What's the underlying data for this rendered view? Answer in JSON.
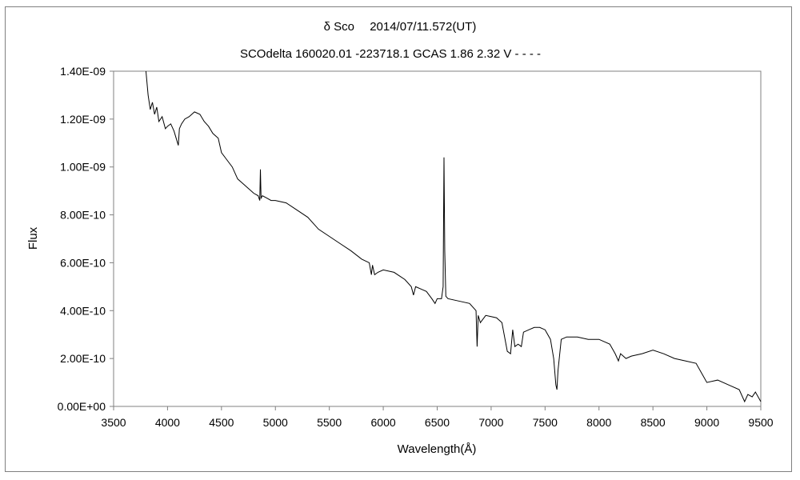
{
  "chart_data": {
    "type": "line",
    "title": "δ Sco　 2014/07/11.572(UT)",
    "subtitle": "SCOdelta 160020.01 -223718.1 GCAS 1.86 2.32 V - - - -",
    "xlabel": "Wavelength(Å)",
    "ylabel": "Flux",
    "xlim": [
      3500,
      9500
    ],
    "ylim": [
      0,
      1.4e-09
    ],
    "x_ticks": [
      "3500",
      "4000",
      "4500",
      "5000",
      "5500",
      "6000",
      "6500",
      "7000",
      "7500",
      "8000",
      "8500",
      "9000",
      "9500"
    ],
    "y_ticks": [
      "0.00E+00",
      "2.00E-10",
      "4.00E-10",
      "6.00E-10",
      "8.00E-10",
      "1.00E-09",
      "1.20E-09",
      "1.40E-09"
    ],
    "grid": false,
    "legend": "none",
    "line_color": "#000000",
    "series": [
      {
        "x": [
          3800,
          3820,
          3840,
          3860,
          3880,
          3900,
          3920,
          3950,
          3980,
          4000,
          4030,
          4060,
          4080,
          4100,
          4110,
          4130,
          4160,
          4200,
          4250,
          4300,
          4340,
          4380,
          4420,
          4470,
          4500,
          4550,
          4600,
          4650,
          4700,
          4750,
          4800,
          4840,
          4855,
          4861,
          4867,
          4880,
          4920,
          4960,
          5000,
          5100,
          5200,
          5300,
          5400,
          5500,
          5600,
          5700,
          5800,
          5870,
          5890,
          5900,
          5920,
          5950,
          6000,
          6100,
          6200,
          6260,
          6280,
          6300,
          6350,
          6400,
          6450,
          6480,
          6500,
          6540,
          6555,
          6563,
          6570,
          6580,
          6600,
          6700,
          6800,
          6860,
          6870,
          6880,
          6900,
          6950,
          7000,
          7050,
          7100,
          7150,
          7180,
          7200,
          7220,
          7250,
          7280,
          7300,
          7350,
          7400,
          7450,
          7500,
          7550,
          7580,
          7600,
          7610,
          7620,
          7650,
          7700,
          7800,
          7900,
          8000,
          8100,
          8150,
          8180,
          8200,
          8250,
          8300,
          8400,
          8500,
          8600,
          8700,
          8800,
          8900,
          8950,
          9000,
          9100,
          9200,
          9300,
          9350,
          9380,
          9420,
          9450,
          9500
        ],
        "y": [
          1.4e-09,
          1.3e-09,
          1.24e-09,
          1.27e-09,
          1.22e-09,
          1.25e-09,
          1.19e-09,
          1.21e-09,
          1.16e-09,
          1.17e-09,
          1.18e-09,
          1.15e-09,
          1.12e-09,
          1.09e-09,
          1.16e-09,
          1.18e-09,
          1.2e-09,
          1.21e-09,
          1.23e-09,
          1.22e-09,
          1.19e-09,
          1.17e-09,
          1.14e-09,
          1.12e-09,
          1.06e-09,
          1.03e-09,
          1e-09,
          9.5e-10,
          9.3e-10,
          9.1e-10,
          8.9e-10,
          8.8e-10,
          8.6e-10,
          9.9e-10,
          8.7e-10,
          8.8e-10,
          8.7e-10,
          8.6e-10,
          8.6e-10,
          8.5e-10,
          8.2e-10,
          7.9e-10,
          7.4e-10,
          7.1e-10,
          6.8e-10,
          6.5e-10,
          6.15e-10,
          6e-10,
          5.5e-10,
          5.9e-10,
          5.5e-10,
          5.6e-10,
          5.7e-10,
          5.6e-10,
          5.3e-10,
          5e-10,
          4.65e-10,
          5e-10,
          4.9e-10,
          4.8e-10,
          4.5e-10,
          4.3e-10,
          4.5e-10,
          4.5e-10,
          5e-10,
          1.04e-09,
          6.5e-10,
          4.6e-10,
          4.5e-10,
          4.4e-10,
          4.3e-10,
          4e-10,
          2.5e-10,
          3.8e-10,
          3.5e-10,
          3.8e-10,
          3.75e-10,
          3.7e-10,
          3.5e-10,
          2.3e-10,
          2.2e-10,
          3.2e-10,
          2.5e-10,
          2.6e-10,
          2.5e-10,
          3.1e-10,
          3.2e-10,
          3.3e-10,
          3.3e-10,
          3.2e-10,
          2.8e-10,
          2e-10,
          9e-11,
          7e-11,
          1.5e-10,
          2.8e-10,
          2.9e-10,
          2.9e-10,
          2.8e-10,
          2.8e-10,
          2.6e-10,
          2.2e-10,
          1.9e-10,
          2.2e-10,
          2e-10,
          2.1e-10,
          2.2e-10,
          2.35e-10,
          2.2e-10,
          2e-10,
          1.9e-10,
          1.8e-10,
          1.4e-10,
          1e-10,
          1.1e-10,
          9e-11,
          7e-11,
          2e-11,
          5e-11,
          4e-11,
          6e-11,
          2e-11
        ]
      }
    ]
  }
}
